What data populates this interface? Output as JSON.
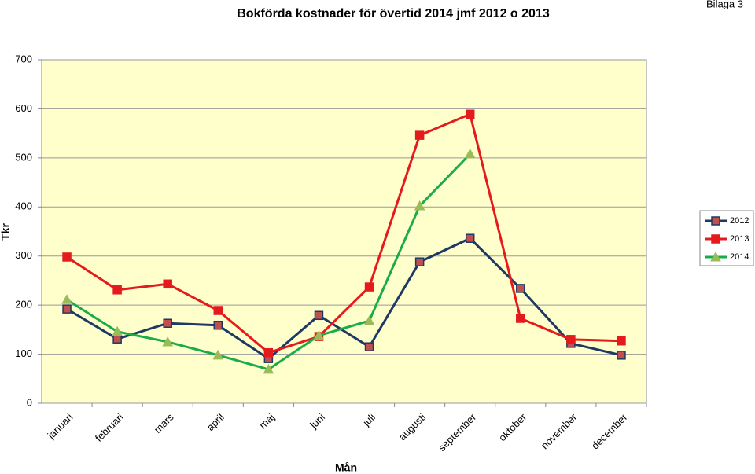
{
  "chart_data": {
    "type": "line",
    "title": "Bokförda kostnader för övertid 2014 jmf 2012 o 2013",
    "annotation": "Bilaga 3",
    "x_label": "Mån",
    "y_label": "Tkr",
    "categories": [
      "januari",
      "februari",
      "mars",
      "april",
      "maj",
      "juni",
      "juli",
      "augusti",
      "september",
      "oktober",
      "november",
      "december"
    ],
    "series": [
      {
        "name": "2012",
        "color": "#1f3864",
        "marker": "square",
        "marker_color": "#c0504d",
        "values": [
          192,
          131,
          163,
          159,
          91,
          179,
          115,
          288,
          336,
          234,
          122,
          98
        ]
      },
      {
        "name": "2013",
        "color": "#e41a1c",
        "marker": "square",
        "marker_color": "#e41a1c",
        "values": [
          298,
          231,
          243,
          189,
          103,
          136,
          237,
          546,
          589,
          173,
          130,
          127
        ]
      },
      {
        "name": "2014",
        "color": "#1aab4a",
        "marker": "triangle",
        "marker_color": "#9bbb59",
        "values": [
          211,
          146,
          125,
          98,
          69,
          138,
          168,
          402,
          508,
          null,
          null,
          null
        ]
      }
    ],
    "ylim": [
      0,
      700
    ],
    "yticks": [
      0,
      100,
      200,
      300,
      400,
      500,
      600,
      700
    ],
    "grid": true,
    "plot_background": "#ffffcc",
    "legend": "right"
  }
}
